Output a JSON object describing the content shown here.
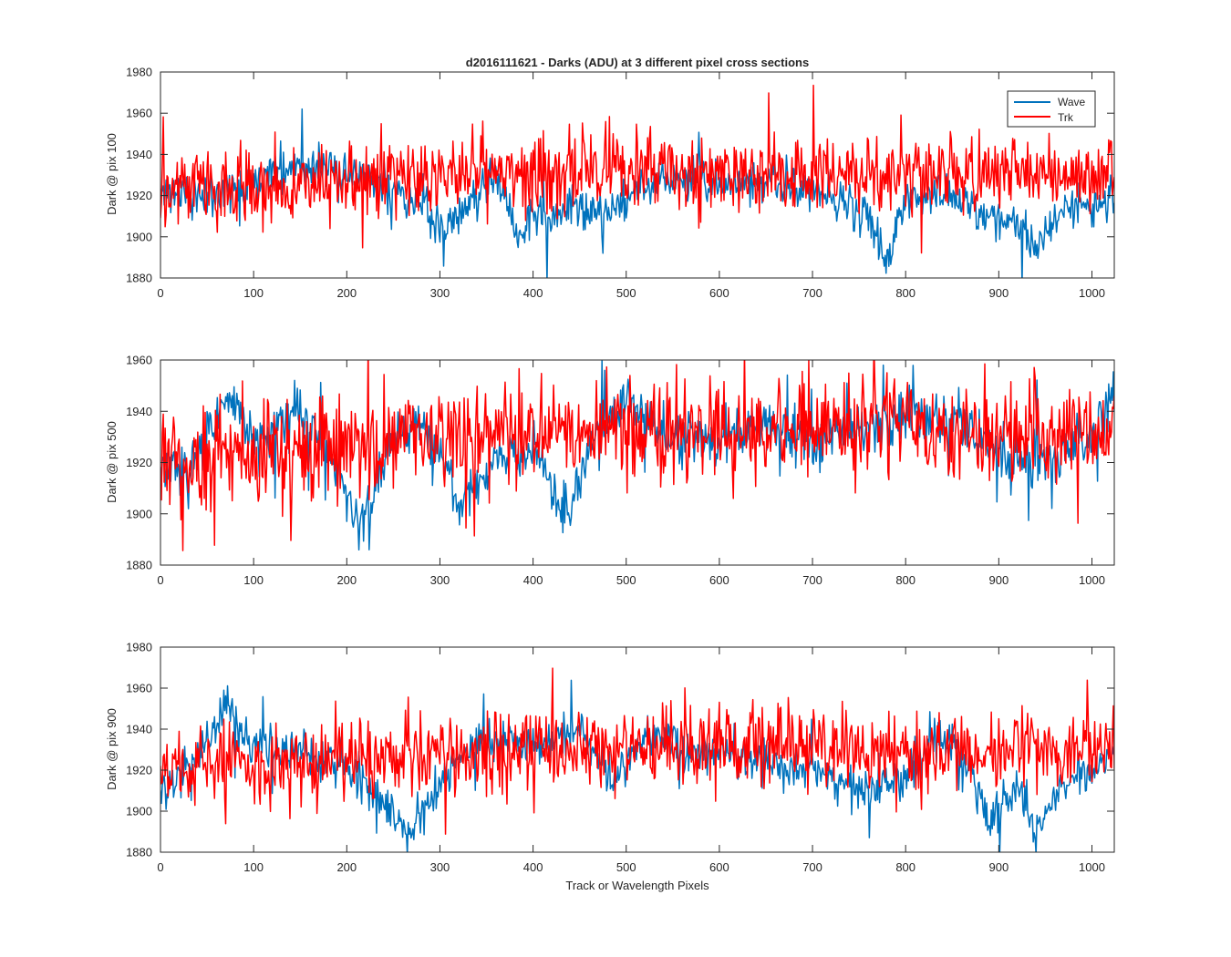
{
  "figure": {
    "title": "d2016111621 - Darks (ADU) at 3 different pixel cross sections",
    "xlabel": "Track or Wavelength Pixels",
    "legend": {
      "entries": [
        "Wave",
        "Trk"
      ],
      "placement": "top-right (top panel)"
    }
  },
  "colors": {
    "wave": "#0072BD",
    "trk": "#FF0000",
    "axes": "#262626"
  },
  "chart_data": [
    {
      "type": "line",
      "title": "d2016111621 - Darks (ADU) at 3 different pixel cross sections",
      "xlabel": "",
      "ylabel": "Dark @ pix 100",
      "xlim": [
        0,
        1024
      ],
      "ylim": [
        1880,
        1980
      ],
      "xticks": [
        0,
        100,
        200,
        300,
        400,
        500,
        600,
        700,
        800,
        900,
        1000
      ],
      "yticks": [
        1880,
        1900,
        1920,
        1940,
        1960,
        1980
      ],
      "grid": false,
      "legend": true,
      "series": [
        {
          "name": "Wave",
          "color": "#0072BD",
          "seed": 11,
          "noise": 5,
          "spikes": 0.03,
          "knots": [
            [
              0,
              1922
            ],
            [
              60,
              1921
            ],
            [
              120,
              1932
            ],
            [
              150,
              1935
            ],
            [
              200,
              1930
            ],
            [
              250,
              1924
            ],
            [
              280,
              1915
            ],
            [
              300,
              1903
            ],
            [
              330,
              1915
            ],
            [
              360,
              1930
            ],
            [
              385,
              1900
            ],
            [
              400,
              1912
            ],
            [
              420,
              1908
            ],
            [
              440,
              1917
            ],
            [
              460,
              1909
            ],
            [
              500,
              1918
            ],
            [
              540,
              1930
            ],
            [
              600,
              1925
            ],
            [
              650,
              1926
            ],
            [
              700,
              1924
            ],
            [
              740,
              1915
            ],
            [
              765,
              1905
            ],
            [
              780,
              1887
            ],
            [
              800,
              1920
            ],
            [
              840,
              1921
            ],
            [
              880,
              1912
            ],
            [
              910,
              1908
            ],
            [
              940,
              1895
            ],
            [
              970,
              1913
            ],
            [
              1000,
              1916
            ],
            [
              1024,
              1922
            ]
          ]
        },
        {
          "name": "Trk",
          "color": "#FF0000",
          "seed": 29,
          "noise": 9,
          "spikes": 0.06,
          "knots": [
            [
              0,
              1924
            ],
            [
              100,
              1922
            ],
            [
              200,
              1927
            ],
            [
              300,
              1930
            ],
            [
              400,
              1932
            ],
            [
              500,
              1932
            ],
            [
              600,
              1930
            ],
            [
              700,
              1930
            ],
            [
              800,
              1930
            ],
            [
              900,
              1930
            ],
            [
              1024,
              1930
            ]
          ]
        }
      ]
    },
    {
      "type": "line",
      "xlabel": "",
      "ylabel": "Dark @ pix 500",
      "xlim": [
        0,
        1024
      ],
      "ylim": [
        1880,
        1960
      ],
      "xticks": [
        0,
        100,
        200,
        300,
        400,
        500,
        600,
        700,
        800,
        900,
        1000
      ],
      "yticks": [
        1880,
        1900,
        1920,
        1940,
        1960
      ],
      "grid": false,
      "legend": false,
      "series": [
        {
          "name": "Wave",
          "color": "#0072BD",
          "seed": 37,
          "noise": 5,
          "spikes": 0.03,
          "knots": [
            [
              0,
              1918
            ],
            [
              40,
              1920
            ],
            [
              70,
              1948
            ],
            [
              100,
              1925
            ],
            [
              150,
              1940
            ],
            [
              180,
              1925
            ],
            [
              215,
              1895
            ],
            [
              250,
              1930
            ],
            [
              290,
              1933
            ],
            [
              320,
              1904
            ],
            [
              360,
              1920
            ],
            [
              400,
              1928
            ],
            [
              435,
              1900
            ],
            [
              460,
              1928
            ],
            [
              500,
              1944
            ],
            [
              550,
              1930
            ],
            [
              600,
              1928
            ],
            [
              650,
              1935
            ],
            [
              700,
              1928
            ],
            [
              750,
              1932
            ],
            [
              800,
              1938
            ],
            [
              850,
              1935
            ],
            [
              900,
              1925
            ],
            [
              950,
              1920
            ],
            [
              1000,
              1930
            ],
            [
              1024,
              1950
            ]
          ]
        },
        {
          "name": "Trk",
          "color": "#FF0000",
          "seed": 53,
          "noise": 9,
          "spikes": 0.06,
          "knots": [
            [
              0,
              1920
            ],
            [
              100,
              1922
            ],
            [
              200,
              1926
            ],
            [
              300,
              1930
            ],
            [
              400,
              1932
            ],
            [
              500,
              1932
            ],
            [
              600,
              1932
            ],
            [
              700,
              1932
            ],
            [
              800,
              1932
            ],
            [
              900,
              1930
            ],
            [
              1024,
              1930
            ]
          ]
        }
      ]
    },
    {
      "type": "line",
      "xlabel": "Track or Wavelength Pixels",
      "ylabel": "Dark @ pix 900",
      "xlim": [
        0,
        1024
      ],
      "ylim": [
        1880,
        1980
      ],
      "xticks": [
        0,
        100,
        200,
        300,
        400,
        500,
        600,
        700,
        800,
        900,
        1000
      ],
      "yticks": [
        1880,
        1900,
        1920,
        1940,
        1960,
        1980
      ],
      "grid": false,
      "legend": false,
      "series": [
        {
          "name": "Wave",
          "color": "#0072BD",
          "seed": 71,
          "noise": 5,
          "spikes": 0.03,
          "knots": [
            [
              0,
              1910
            ],
            [
              40,
              1925
            ],
            [
              70,
              1952
            ],
            [
              100,
              1930
            ],
            [
              150,
              1930
            ],
            [
              200,
              1922
            ],
            [
              230,
              1910
            ],
            [
              265,
              1890
            ],
            [
              300,
              1912
            ],
            [
              340,
              1935
            ],
            [
              380,
              1935
            ],
            [
              400,
              1930
            ],
            [
              450,
              1940
            ],
            [
              480,
              1918
            ],
            [
              500,
              1920
            ],
            [
              520,
              1940
            ],
            [
              560,
              1930
            ],
            [
              600,
              1928
            ],
            [
              650,
              1925
            ],
            [
              700,
              1920
            ],
            [
              750,
              1910
            ],
            [
              800,
              1915
            ],
            [
              840,
              1940
            ],
            [
              870,
              1920
            ],
            [
              890,
              1895
            ],
            [
              920,
              1910
            ],
            [
              940,
              1890
            ],
            [
              970,
              1915
            ],
            [
              1000,
              1920
            ],
            [
              1024,
              1932
            ]
          ]
        },
        {
          "name": "Trk",
          "color": "#FF0000",
          "seed": 97,
          "noise": 9,
          "spikes": 0.06,
          "knots": [
            [
              0,
              1920
            ],
            [
              100,
              1924
            ],
            [
              200,
              1926
            ],
            [
              300,
              1928
            ],
            [
              400,
              1930
            ],
            [
              500,
              1930
            ],
            [
              600,
              1930
            ],
            [
              700,
              1930
            ],
            [
              800,
              1930
            ],
            [
              900,
              1930
            ],
            [
              1024,
              1932
            ]
          ]
        }
      ]
    }
  ]
}
